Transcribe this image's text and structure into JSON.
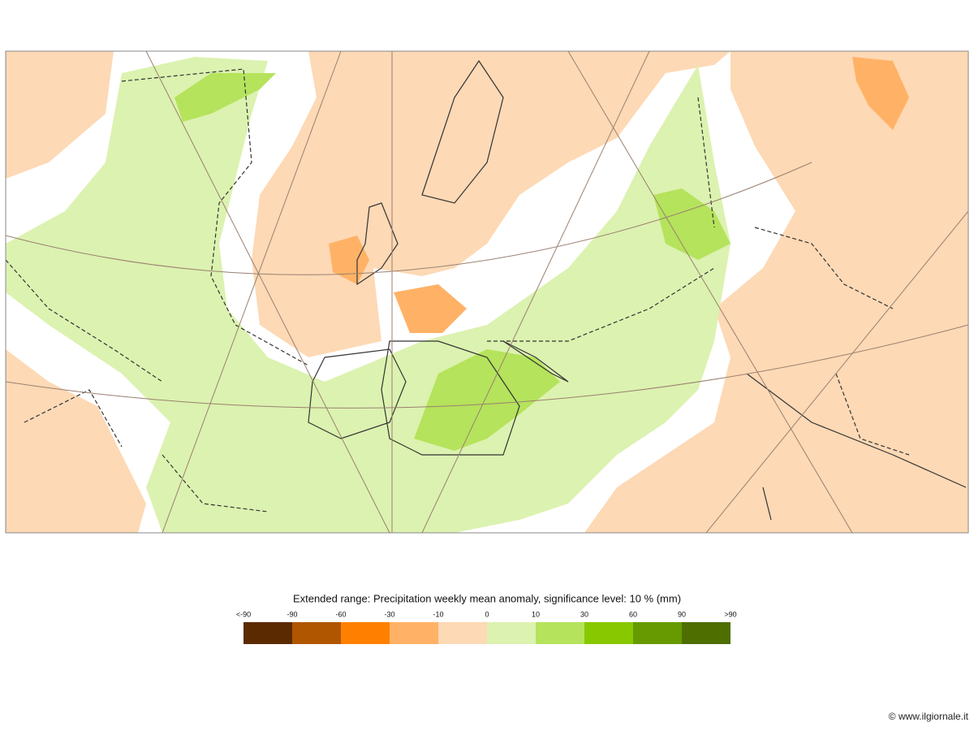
{
  "legend": {
    "title": "Extended range: Precipitation weekly mean anomaly, significance level: 10 % (mm)",
    "labels": [
      "<-90",
      "-90",
      "-60",
      "-30",
      "-10",
      "0",
      "10",
      "30",
      "60",
      "90",
      ">90"
    ],
    "colors": [
      "#5c2a00",
      "#b05600",
      "#ff8000",
      "#ffb266",
      "#fdd9b5",
      "#dcf2b0",
      "#b5e35c",
      "#88c800",
      "#669a00",
      "#4e6e00"
    ]
  },
  "watermark": "© www.ilgiornale.it"
}
